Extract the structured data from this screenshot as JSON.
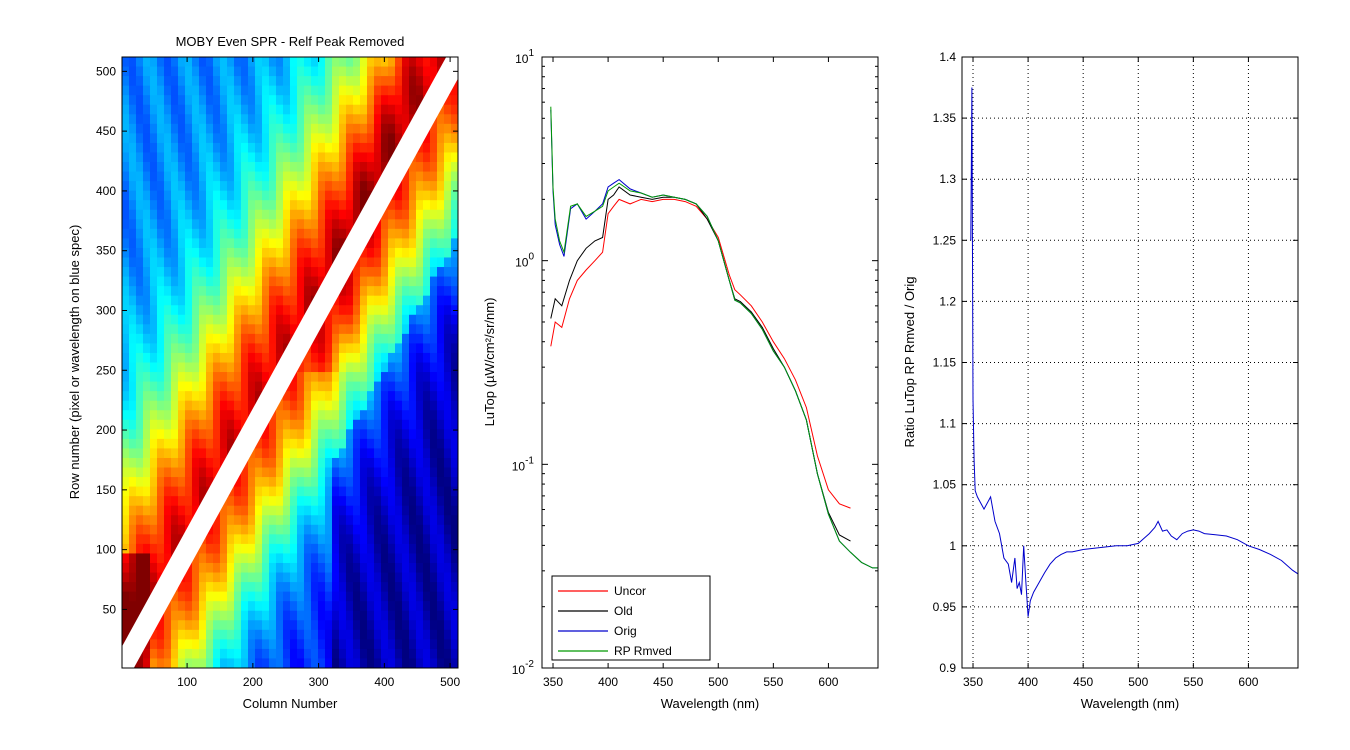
{
  "chart_data": [
    {
      "type": "heatmap",
      "title": "MOBY Even SPR - Relf Peak Removed",
      "xlabel": "Column Number",
      "ylabel": "Row number (pixel or wavelength on blue spec)",
      "xlim": [
        1,
        512
      ],
      "ylim": [
        1,
        512
      ],
      "xticks": [
        100,
        200,
        300,
        400,
        500
      ],
      "yticks": [
        50,
        100,
        150,
        200,
        250,
        300,
        350,
        400,
        450,
        500
      ],
      "colormap": "jet",
      "description_features": {
        "removed_band": "white diagonal band where column ≈ row",
        "high_values": "orange/red near the diagonal",
        "low_values": "blue at far corners"
      }
    },
    {
      "type": "line",
      "title": "",
      "xlabel": "Wavelength (nm)",
      "ylabel": "LuTop (µW/cm²/sr/nm)",
      "xlim": [
        340,
        645
      ],
      "ylim": [
        0.01,
        10
      ],
      "yscale": "log",
      "xticks": [
        350,
        400,
        450,
        500,
        550,
        600
      ],
      "ytick_labels": [
        {
          "base": "10",
          "exp": "-2",
          "value": 0.01
        },
        {
          "base": "10",
          "exp": "-1",
          "value": 0.1
        },
        {
          "base": "10",
          "exp": "0",
          "value": 1
        },
        {
          "base": "10",
          "exp": "1",
          "value": 10
        }
      ],
      "legend_position": "lower-left",
      "grid": false,
      "series": [
        {
          "name": "Uncor",
          "color": "#ff0000",
          "x": [
            348,
            352,
            358,
            365,
            372,
            380,
            388,
            395,
            400,
            405,
            410,
            420,
            430,
            440,
            450,
            460,
            470,
            480,
            490,
            500,
            510,
            515,
            520,
            530,
            540,
            550,
            560,
            570,
            580,
            590,
            600,
            610,
            620
          ],
          "y": [
            0.38,
            0.5,
            0.47,
            0.65,
            0.8,
            0.9,
            1.0,
            1.1,
            1.7,
            1.85,
            2.0,
            1.9,
            2.0,
            1.95,
            2.0,
            2.0,
            1.95,
            1.85,
            1.6,
            1.3,
            0.85,
            0.72,
            0.68,
            0.6,
            0.5,
            0.4,
            0.33,
            0.26,
            0.19,
            0.11,
            0.075,
            0.064,
            0.061
          ]
        },
        {
          "name": "Old",
          "color": "#000000",
          "x": [
            348,
            352,
            358,
            365,
            372,
            380,
            388,
            395,
            400,
            405,
            410,
            420,
            430,
            440,
            450,
            460,
            470,
            480,
            490,
            500,
            510,
            515,
            520,
            530,
            540,
            550,
            560,
            570,
            580,
            590,
            600,
            610,
            620
          ],
          "y": [
            0.52,
            0.65,
            0.6,
            0.8,
            1.0,
            1.15,
            1.25,
            1.3,
            2.0,
            2.1,
            2.3,
            2.1,
            2.05,
            2.0,
            2.05,
            2.05,
            2.0,
            1.9,
            1.6,
            1.25,
            0.8,
            0.65,
            0.63,
            0.56,
            0.47,
            0.37,
            0.3,
            0.23,
            0.165,
            0.09,
            0.058,
            0.045,
            0.042
          ]
        },
        {
          "name": "Orig",
          "color": "#0000cc",
          "x": [
            348,
            350,
            352,
            356,
            360,
            366,
            372,
            380,
            388,
            395,
            400,
            405,
            410,
            420,
            430,
            440,
            450,
            460,
            470,
            480,
            490,
            500,
            510,
            515,
            520,
            530,
            540,
            550,
            560,
            570,
            580,
            590,
            600,
            610,
            620,
            630,
            640,
            645
          ],
          "y": [
            5.5,
            2.2,
            1.5,
            1.2,
            1.05,
            1.8,
            1.9,
            1.6,
            1.75,
            1.9,
            2.3,
            2.4,
            2.5,
            2.25,
            2.15,
            2.05,
            2.1,
            2.05,
            2.0,
            1.9,
            1.65,
            1.25,
            0.8,
            0.64,
            0.62,
            0.55,
            0.46,
            0.36,
            0.3,
            0.23,
            0.165,
            0.09,
            0.057,
            0.042,
            0.037,
            0.033,
            0.031,
            0.031
          ]
        },
        {
          "name": "RP Rmved",
          "color": "#009900",
          "x": [
            348,
            350,
            352,
            356,
            360,
            366,
            372,
            380,
            388,
            395,
            400,
            405,
            410,
            420,
            430,
            440,
            450,
            460,
            470,
            480,
            490,
            500,
            510,
            515,
            520,
            530,
            540,
            550,
            560,
            570,
            580,
            590,
            600,
            610,
            620,
            630,
            640,
            645
          ],
          "y": [
            5.7,
            2.3,
            1.6,
            1.25,
            1.1,
            1.85,
            1.9,
            1.65,
            1.75,
            1.85,
            2.2,
            2.3,
            2.4,
            2.2,
            2.15,
            2.05,
            2.1,
            2.05,
            2.0,
            1.9,
            1.65,
            1.25,
            0.8,
            0.64,
            0.62,
            0.55,
            0.46,
            0.36,
            0.3,
            0.23,
            0.165,
            0.09,
            0.057,
            0.042,
            0.037,
            0.033,
            0.031,
            0.031
          ]
        }
      ]
    },
    {
      "type": "line",
      "title": "",
      "xlabel": "Wavelength (nm)",
      "ylabel": "Ratio LuTop RP Rmved / Orig",
      "xlim": [
        340,
        645
      ],
      "ylim": [
        0.9,
        1.4
      ],
      "xticks": [
        350,
        400,
        450,
        500,
        550,
        600
      ],
      "yticks": [
        0.9,
        0.95,
        1,
        1.05,
        1.1,
        1.15,
        1.2,
        1.25,
        1.3,
        1.35,
        1.4
      ],
      "grid": true,
      "series": [
        {
          "color": "#0000cc",
          "x": [
            348,
            349,
            350,
            351,
            352,
            354,
            357,
            360,
            363,
            366,
            370,
            374,
            378,
            382,
            385,
            388,
            390,
            392,
            394,
            396,
            398,
            400,
            402,
            405,
            410,
            415,
            420,
            425,
            430,
            435,
            440,
            450,
            460,
            470,
            480,
            490,
            500,
            505,
            510,
            515,
            518,
            522,
            526,
            530,
            535,
            540,
            545,
            550,
            555,
            560,
            570,
            580,
            590,
            600,
            610,
            620,
            630,
            640,
            645
          ],
          "y": [
            1.25,
            1.375,
            1.12,
            1.07,
            1.045,
            1.04,
            1.035,
            1.03,
            1.035,
            1.04,
            1.02,
            1.01,
            0.99,
            0.985,
            0.97,
            0.99,
            0.965,
            0.97,
            0.96,
            1.0,
            0.97,
            0.942,
            0.955,
            0.962,
            0.97,
            0.978,
            0.985,
            0.99,
            0.993,
            0.995,
            0.995,
            0.997,
            0.998,
            0.999,
            1.0,
            1.0,
            1.002,
            1.006,
            1.01,
            1.015,
            1.02,
            1.012,
            1.013,
            1.008,
            1.005,
            1.01,
            1.012,
            1.013,
            1.012,
            1.01,
            1.009,
            1.008,
            1.005,
            1.0,
            0.997,
            0.993,
            0.988,
            0.98,
            0.977
          ]
        }
      ]
    }
  ]
}
